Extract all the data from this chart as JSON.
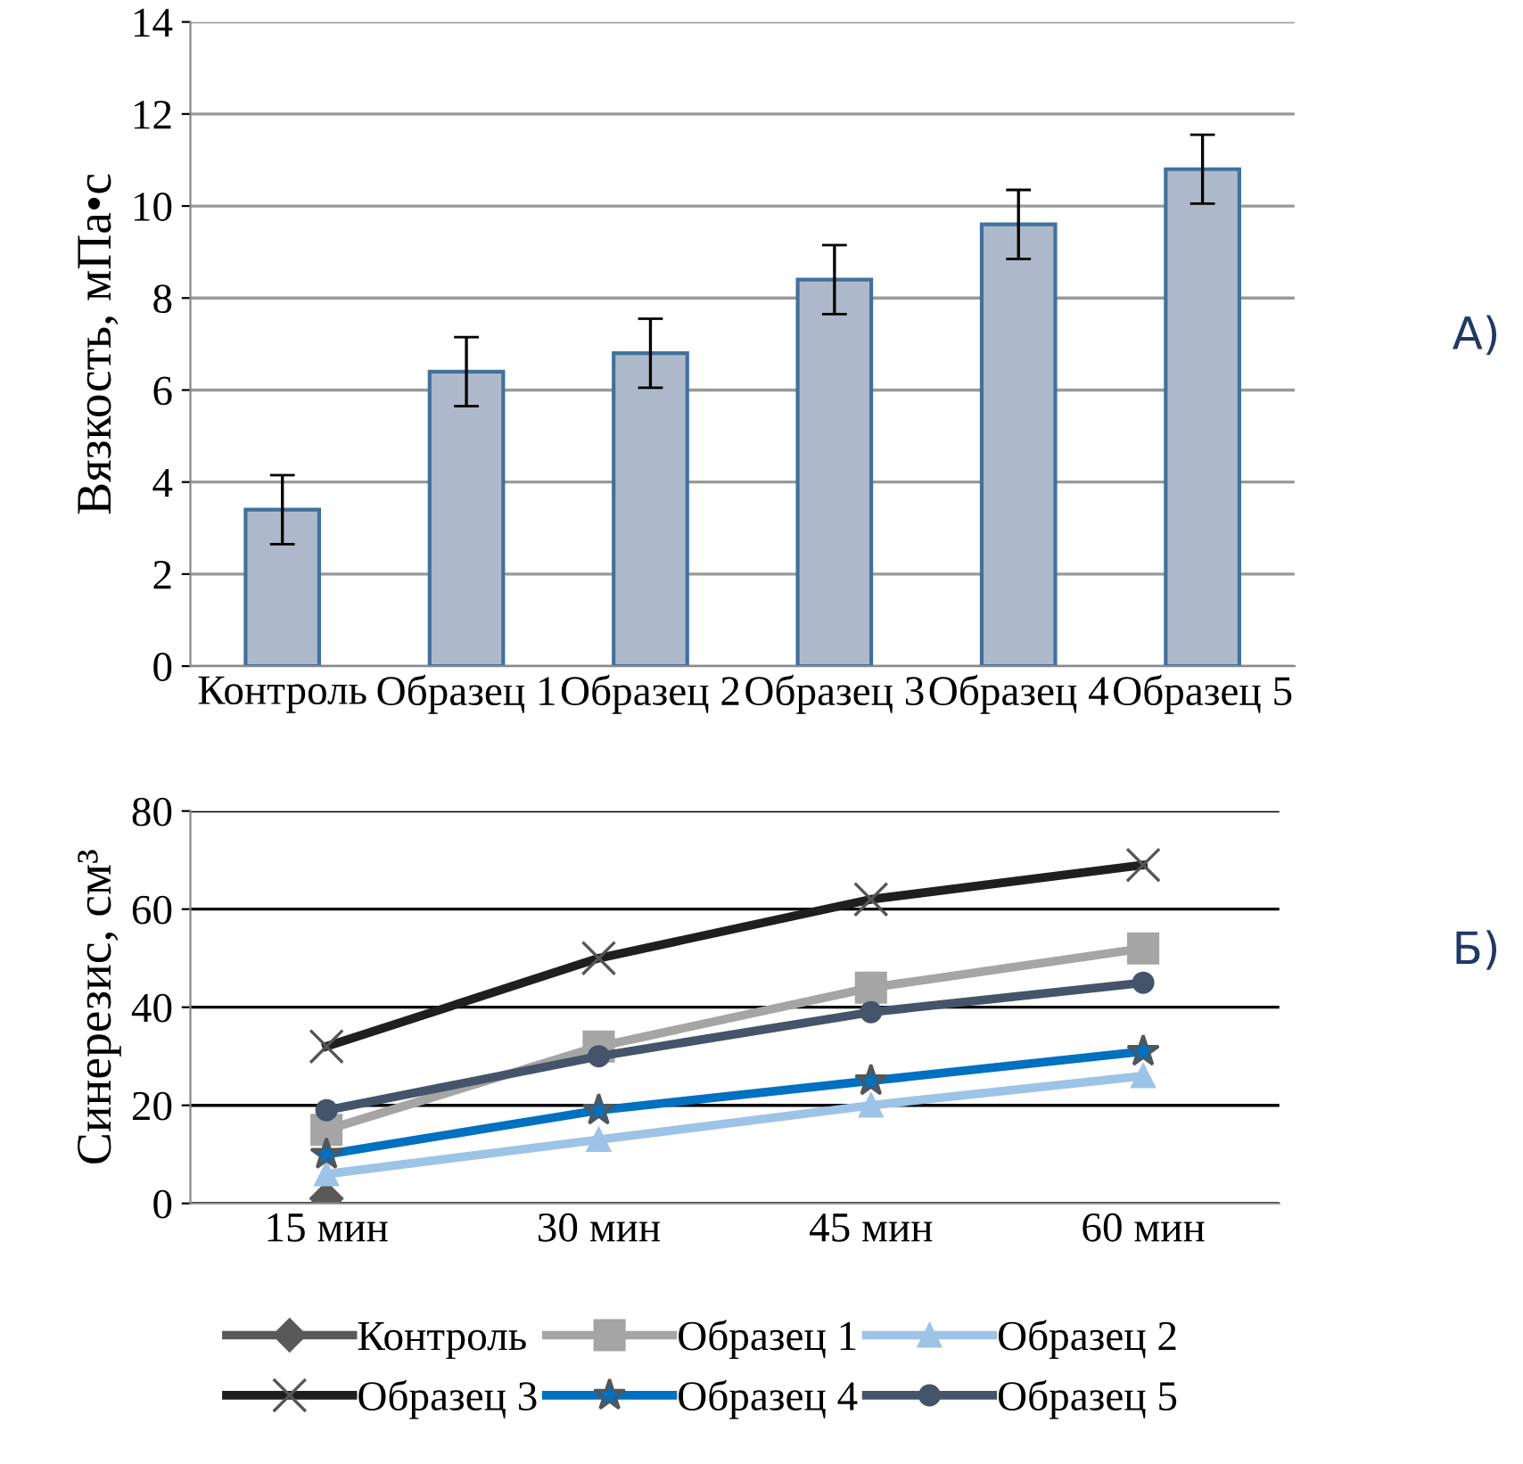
{
  "chart_data": [
    {
      "type": "bar",
      "ylabel": "Вязкость, мПа•с",
      "categories": [
        "Контроль",
        "Образец 1",
        "Образец 2",
        "Образец 3",
        "Образец 4",
        "Образец 5"
      ],
      "values": [
        3.4,
        6.4,
        6.8,
        8.4,
        9.6,
        10.8
      ],
      "errors": [
        0.75,
        0.75,
        0.75,
        0.75,
        0.75,
        0.75
      ],
      "color": "#adb9ca",
      "ylim": [
        0,
        14
      ],
      "yticks": [
        0,
        2,
        4,
        6,
        8,
        10,
        12,
        14
      ],
      "grid": "y",
      "annotations": [
        "А)"
      ]
    },
    {
      "type": "line",
      "ylabel": "Синерезис, см³",
      "categories": [
        "15 мин",
        "30 мин",
        "45 мин",
        "60 мин"
      ],
      "ylim": [
        0,
        80
      ],
      "yticks": [
        0,
        20,
        40,
        60,
        80
      ],
      "grid": "y",
      "legend": "bottom",
      "annotations": [
        "Б)"
      ],
      "series": [
        {
          "name": "Контроль",
          "color": "#595959",
          "marker": "diamond",
          "values": [
            1,
            null,
            null,
            null
          ]
        },
        {
          "name": "Образец 1",
          "color": "#a5a5a5",
          "marker": "square",
          "values": [
            15,
            32,
            44,
            52
          ]
        },
        {
          "name": "Образец 2",
          "color": "#9dc3e6",
          "marker": "triangle",
          "values": [
            6,
            13,
            20,
            26
          ]
        },
        {
          "name": "Образец 3",
          "color": "#1f1f1f",
          "marker": "cross",
          "values": [
            32,
            50,
            62,
            69
          ]
        },
        {
          "name": "Образец 4",
          "color": "#0070c0",
          "marker": "star",
          "values": [
            10,
            19,
            25,
            31
          ]
        },
        {
          "name": "Образец 5",
          "color": "#44546a",
          "marker": "circle",
          "values": [
            19,
            30,
            39,
            45
          ]
        }
      ]
    }
  ]
}
